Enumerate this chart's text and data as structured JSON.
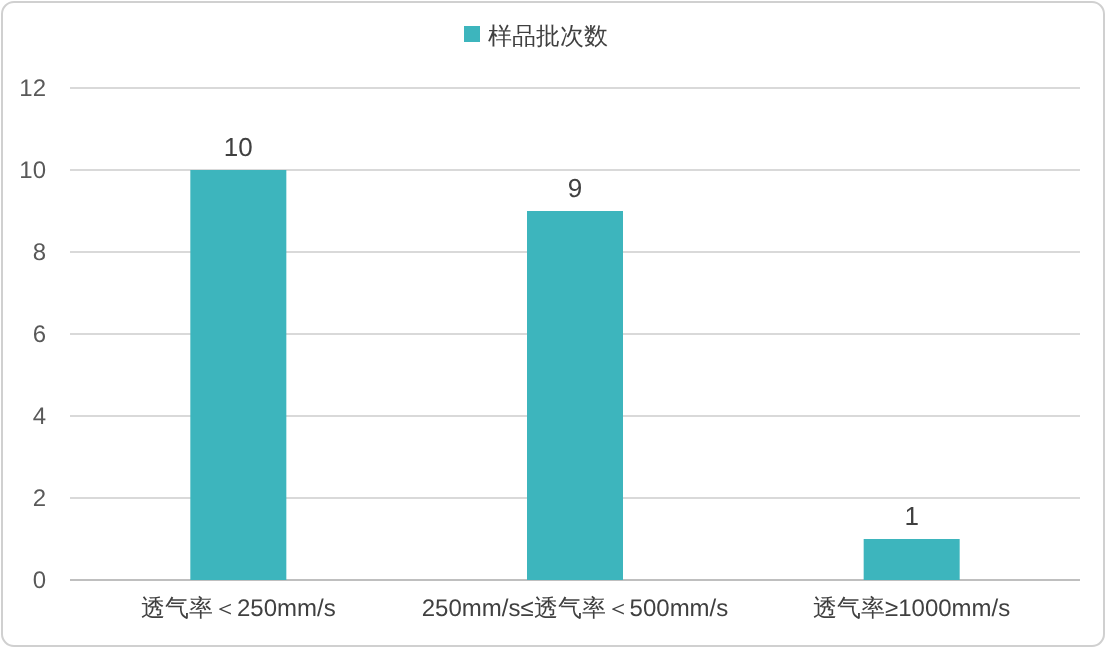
{
  "chart_data": {
    "type": "bar",
    "categories": [
      "透气率＜250mm/s",
      "250mm/s≤透气率＜500mm/s",
      "透气率≥1000mm/s"
    ],
    "series": [
      {
        "name": "样品批次数",
        "color": "#3db5bd",
        "values": [
          10,
          9,
          1
        ]
      }
    ],
    "ylim": [
      0,
      12
    ],
    "yticks": [
      0,
      2,
      4,
      6,
      8,
      10,
      12
    ],
    "grid": "y",
    "legend": "top",
    "data_labels": true
  }
}
